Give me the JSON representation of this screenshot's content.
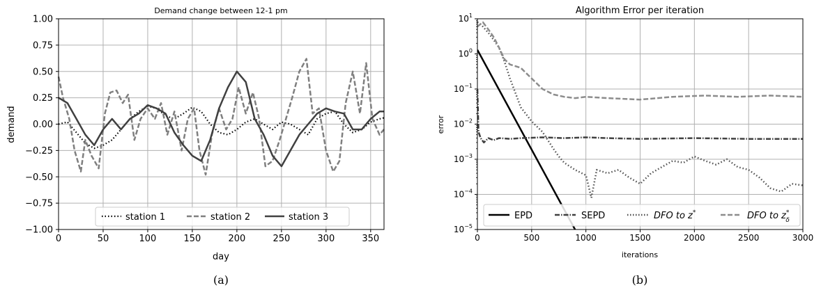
{
  "panels": [
    {
      "caption": "(a)",
      "chart_data": {
        "type": "line",
        "title": "Demand change between 12-1 pm",
        "xlabel": "day",
        "ylabel": "demand",
        "xlim": [
          0,
          365
        ],
        "ylim": [
          -1.0,
          1.0
        ],
        "x_ticks": [
          0,
          50,
          100,
          150,
          200,
          250,
          300,
          350
        ],
        "y_ticks": [
          -1.0,
          -0.75,
          -0.5,
          -0.25,
          0.0,
          0.25,
          0.5,
          0.75,
          1.0
        ],
        "y_tick_labels": [
          "−1.00",
          "−0.75",
          "−0.50",
          "−0.25",
          "0.00",
          "0.25",
          "0.50",
          "0.75",
          "1.00"
        ],
        "grid": true,
        "legend_position": "bottom-center",
        "series": [
          {
            "name": "station 1",
            "style": "dotted",
            "color": "#000000",
            "x": [
              0,
              10,
              20,
              30,
              40,
              50,
              60,
              70,
              80,
              90,
              100,
              110,
              120,
              130,
              140,
              150,
              160,
              170,
              180,
              190,
              200,
              210,
              220,
              230,
              240,
              250,
              260,
              270,
              280,
              290,
              300,
              310,
              320,
              330,
              340,
              350,
              360,
              365
            ],
            "y": [
              0.0,
              0.02,
              -0.08,
              -0.18,
              -0.23,
              -0.2,
              -0.15,
              -0.05,
              0.05,
              0.12,
              0.17,
              0.15,
              0.08,
              0.05,
              0.1,
              0.16,
              0.12,
              0.0,
              -0.08,
              -0.1,
              -0.05,
              0.02,
              0.05,
              0.0,
              -0.05,
              0.02,
              0.0,
              -0.05,
              -0.1,
              0.05,
              0.1,
              0.12,
              0.0,
              -0.08,
              -0.05,
              0.02,
              0.05,
              0.06
            ]
          },
          {
            "name": "station 2",
            "style": "dashed",
            "color": "#7f7f7f",
            "x": [
              0,
              5,
              12,
              18,
              25,
              30,
              37,
              45,
              52,
              58,
              65,
              72,
              78,
              85,
              92,
              100,
              108,
              115,
              122,
              130,
              138,
              145,
              152,
              158,
              165,
              172,
              180,
              188,
              195,
              202,
              210,
              218,
              225,
              232,
              240,
              248,
              255,
              262,
              270,
              278,
              285,
              292,
              300,
              308,
              315,
              322,
              330,
              338,
              345,
              352,
              360,
              365
            ],
            "y": [
              0.45,
              0.25,
              0.05,
              -0.25,
              -0.45,
              -0.15,
              -0.3,
              -0.42,
              0.1,
              0.3,
              0.32,
              0.2,
              0.28,
              -0.15,
              0.05,
              0.15,
              0.05,
              0.2,
              -0.1,
              0.12,
              -0.25,
              0.05,
              0.15,
              -0.25,
              -0.48,
              -0.1,
              0.15,
              -0.05,
              0.05,
              0.35,
              0.1,
              0.3,
              0.05,
              -0.4,
              -0.35,
              -0.15,
              0.05,
              0.25,
              0.5,
              0.62,
              0.1,
              0.15,
              -0.25,
              -0.45,
              -0.35,
              0.2,
              0.5,
              0.1,
              0.58,
              0.05,
              -0.1,
              -0.05
            ]
          },
          {
            "name": "station 3",
            "style": "solid",
            "color": "#404040",
            "x": [
              0,
              10,
              20,
              30,
              40,
              50,
              60,
              70,
              80,
              90,
              100,
              110,
              120,
              130,
              140,
              150,
              160,
              170,
              180,
              190,
              200,
              210,
              220,
              230,
              240,
              250,
              260,
              270,
              280,
              290,
              300,
              310,
              320,
              330,
              340,
              350,
              360,
              365
            ],
            "y": [
              0.25,
              0.2,
              0.05,
              -0.1,
              -0.2,
              -0.05,
              0.05,
              -0.05,
              0.05,
              0.1,
              0.18,
              0.15,
              0.1,
              -0.08,
              -0.2,
              -0.3,
              -0.35,
              -0.15,
              0.15,
              0.35,
              0.5,
              0.4,
              0.05,
              -0.1,
              -0.3,
              -0.4,
              -0.25,
              -0.1,
              0.0,
              0.1,
              0.15,
              0.12,
              0.1,
              -0.05,
              -0.05,
              0.05,
              0.12,
              0.12
            ]
          }
        ]
      }
    },
    {
      "caption": "(b)",
      "chart_data": {
        "type": "line",
        "title": "Algorithm Error per iteration",
        "xlabel": "iterations",
        "ylabel": "error",
        "y_scale": "log",
        "xlim": [
          0,
          3000
        ],
        "ylim": [
          1e-05,
          10
        ],
        "x_ticks": [
          0,
          500,
          1000,
          1500,
          2000,
          2500,
          3000
        ],
        "y_ticks": [
          1e-05,
          0.0001,
          0.001,
          0.01,
          0.1,
          1,
          10
        ],
        "y_tick_mantissa": "10",
        "y_tick_exponents": [
          "−5",
          "−4",
          "−3",
          "−2",
          "−1",
          "0",
          "1"
        ],
        "grid": true,
        "legend_position": "bottom",
        "series": [
          {
            "name": "EPD",
            "style": "solid",
            "color": "#000000",
            "x": [
              0,
              900
            ],
            "y": [
              1.3,
              1e-05
            ]
          },
          {
            "name": "SEPD",
            "style": "dashdot",
            "color": "#404040",
            "x": [
              0,
              10,
              30,
              60,
              100,
              150,
              200,
              300,
              400,
              600,
              800,
              1000,
              1200,
              1500,
              2000,
              2500,
              3000
            ],
            "y": [
              0.1,
              0.006,
              0.004,
              0.003,
              0.004,
              0.0035,
              0.004,
              0.0038,
              0.004,
              0.0042,
              0.004,
              0.0042,
              0.004,
              0.0038,
              0.004,
              0.0038,
              0.0038
            ]
          },
          {
            "name": "DFO to z*",
            "name_main": "DFO to z",
            "name_sup": "*",
            "name_sub": "",
            "style": "dotted",
            "color": "#505050",
            "x": [
              0,
              50,
              100,
              150,
              200,
              250,
              300,
              400,
              500,
              600,
              700,
              750,
              800,
              900,
              1000,
              1050,
              1100,
              1200,
              1300,
              1400,
              1500,
              1600,
              1700,
              1800,
              1900,
              2000,
              2100,
              2200,
              2300,
              2400,
              2500,
              2600,
              2700,
              2800,
              2900,
              3000
            ],
            "y": [
              8.0,
              6.0,
              4.0,
              2.5,
              1.5,
              0.6,
              0.2,
              0.03,
              0.012,
              0.006,
              0.002,
              0.0012,
              0.0008,
              0.0005,
              0.00035,
              8e-05,
              0.0005,
              0.0004,
              0.0005,
              0.0003,
              0.0002,
              0.0004,
              0.0006,
              0.0009,
              0.0008,
              0.0012,
              0.0009,
              0.0007,
              0.001,
              0.0006,
              0.0005,
              0.0003,
              0.00015,
              0.00012,
              0.0002,
              0.00018
            ]
          },
          {
            "name": "DFO to z*δ",
            "name_main": "DFO to z",
            "name_sup": "*",
            "name_sub": "δ",
            "style": "dashed",
            "color": "#8c8c8c",
            "x": [
              0,
              50,
              100,
              150,
              200,
              250,
              300,
              400,
              500,
              600,
              700,
              800,
              900,
              1000,
              1200,
              1500,
              1800,
              2100,
              2400,
              2700,
              3000
            ],
            "y": [
              6.0,
              8.0,
              5.0,
              3.0,
              1.5,
              0.7,
              0.5,
              0.4,
              0.2,
              0.1,
              0.07,
              0.06,
              0.055,
              0.06,
              0.055,
              0.05,
              0.06,
              0.065,
              0.06,
              0.065,
              0.06
            ]
          }
        ]
      }
    }
  ]
}
